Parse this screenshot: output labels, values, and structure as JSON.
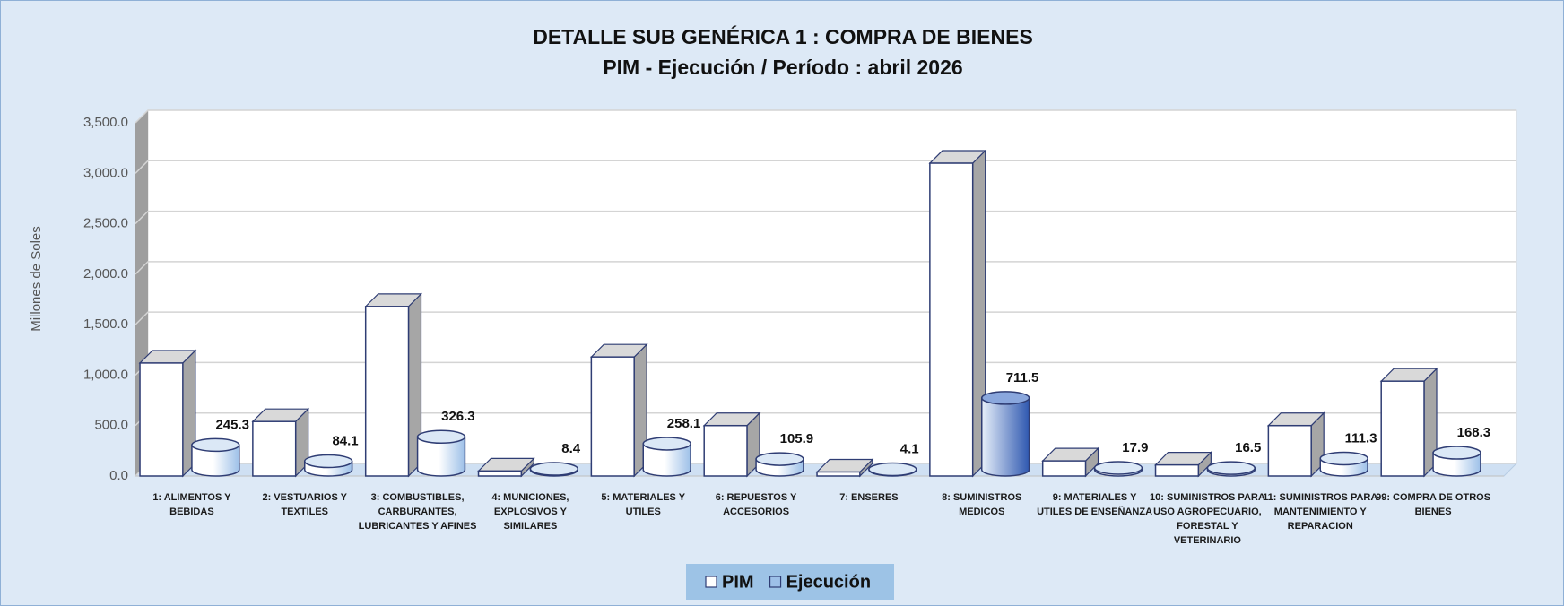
{
  "chart_data": {
    "type": "bar3d",
    "title": "DETALLE SUB GENÉRICA 1 : COMPRA DE BIENES",
    "subtitle": "PIM - Ejecución / Período :  abril 2026",
    "y_label": "Millones de Soles",
    "categories": [
      "1: ALIMENTOS Y BEBIDAS",
      "2: VESTUARIOS Y TEXTILES",
      "3: COMBUSTIBLES, CARBURANTES, LUBRICANTES Y AFINES",
      "4: MUNICIONES, EXPLOSIVOS Y SIMILARES",
      "5: MATERIALES Y UTILES",
      "6: REPUESTOS Y ACCESORIOS",
      "7: ENSERES",
      "8: SUMINISTROS MEDICOS",
      "9: MATERIALES Y UTILES DE ENSEÑANZA",
      "10: SUMINISTROS PARA USO AGROPECUARIO, FORESTAL Y VETERINARIO",
      "11: SUMINISTROS PARA MANTENIMIENTO Y REPARACION",
      "99: COMPRA DE OTROS BIENES"
    ],
    "series": [
      {
        "name": "PIM",
        "color": "#ffffff",
        "values": [
          1120,
          540,
          1680,
          50,
          1180,
          500,
          40,
          3100,
          150,
          110,
          500,
          940
        ]
      },
      {
        "name": "Ejecución",
        "color": "#9dc0e8",
        "values": [
          245.3,
          84.1,
          326.3,
          8.4,
          258.1,
          105.9,
          4.1,
          711.5,
          17.9,
          16.5,
          111.3,
          168.3
        ]
      }
    ],
    "ylim": [
      0,
      3500
    ],
    "yticks": [
      {
        "value": 0,
        "label": "0.0"
      },
      {
        "value": 500,
        "label": "500.0"
      },
      {
        "value": 1000,
        "label": "1,000.0"
      },
      {
        "value": 1500,
        "label": "1,500.0"
      },
      {
        "value": 2000,
        "label": "2,000.0"
      },
      {
        "value": 2500,
        "label": "2,500.0"
      },
      {
        "value": 3000,
        "label": "3,000.0"
      },
      {
        "value": 3500,
        "label": "3,500.0"
      }
    ],
    "grid": true,
    "legend": "bottom"
  }
}
